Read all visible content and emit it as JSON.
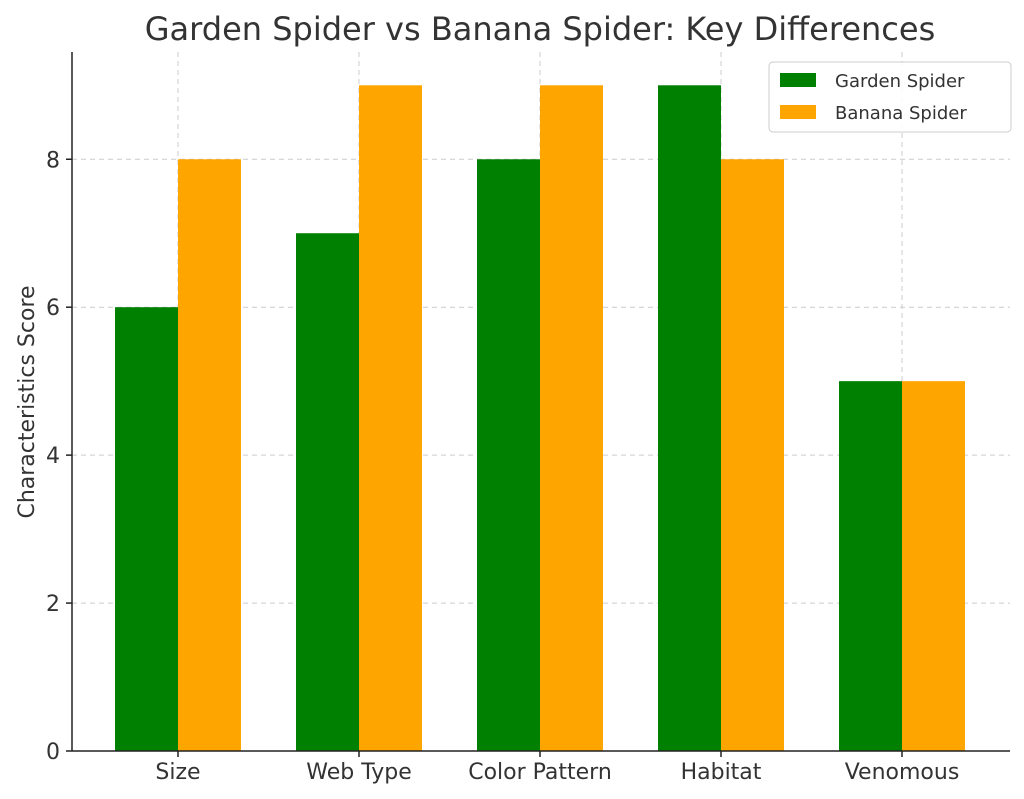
{
  "chart_data": {
    "type": "bar",
    "title": "Garden Spider vs Banana Spider: Key Differences",
    "xlabel": "",
    "ylabel": "Characteristics Score",
    "categories": [
      "Size",
      "Web Type",
      "Color Pattern",
      "Habitat",
      "Venomous"
    ],
    "series": [
      {
        "name": "Garden Spider",
        "color": "#008000",
        "values": [
          6,
          7,
          8,
          9,
          5
        ]
      },
      {
        "name": "Banana Spider",
        "color": "#FFA500",
        "values": [
          8,
          9,
          9,
          8,
          5
        ]
      }
    ],
    "ylim": [
      0,
      9.45
    ],
    "yticks": [
      0,
      2,
      4,
      6,
      8
    ],
    "grid": true,
    "legend_position": "top-right"
  }
}
